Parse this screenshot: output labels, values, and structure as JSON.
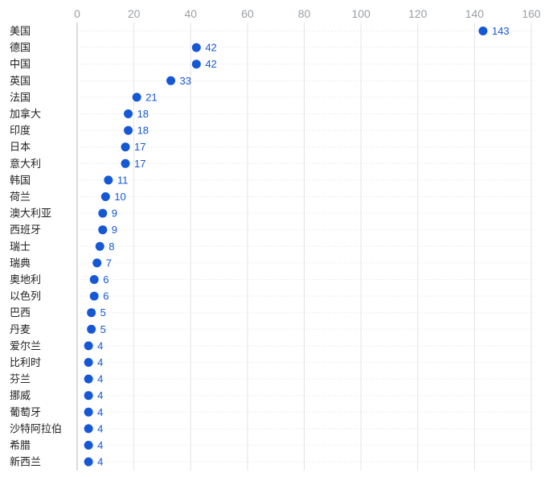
{
  "chart_data": {
    "type": "scatter",
    "orientation": "horizontal",
    "categories": [
      "美国",
      "德国",
      "中国",
      "英国",
      "法国",
      "加拿大",
      "印度",
      "日本",
      "意大利",
      "韩国",
      "荷兰",
      "澳大利亚",
      "西班牙",
      "瑞士",
      "瑞典",
      "奥地利",
      "以色列",
      "巴西",
      "丹麦",
      "爱尔兰",
      "比利时",
      "芬兰",
      "挪威",
      "葡萄牙",
      "沙特阿拉伯",
      "希腊",
      "新西兰"
    ],
    "values": [
      143,
      42,
      42,
      33,
      21,
      18,
      18,
      17,
      17,
      11,
      10,
      9,
      9,
      8,
      7,
      6,
      6,
      5,
      5,
      4,
      4,
      4,
      4,
      4,
      4,
      4,
      4
    ],
    "xticks": [
      0,
      20,
      40,
      60,
      80,
      100,
      120,
      140,
      160
    ],
    "xlim": [
      0,
      160
    ],
    "grid": true,
    "title": "",
    "xlabel": "",
    "ylabel": ""
  },
  "colors": {
    "dot": "#1558d6",
    "value_text": "#1558d6",
    "tick_text": "#9aa0a6",
    "grid": "#e3e3e3",
    "row_line": "#eeeeee",
    "axis": "#cfcfcf"
  }
}
